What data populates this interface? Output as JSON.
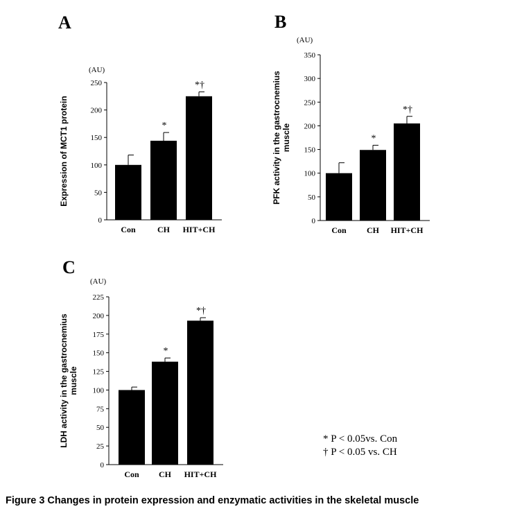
{
  "caption": "Figure 3 Changes in protein expression and enzymatic activities in the skeletal muscle",
  "legend": {
    "line1": "* P < 0.05vs. Con",
    "line2": "† P < 0.05 vs. CH"
  },
  "chart_data": [
    {
      "type": "bar",
      "panel": "A",
      "unit": "(AU)",
      "ylabel": "Expression of MCT1 protein",
      "categories": [
        "Con",
        "CH",
        "HIT+CH"
      ],
      "values": [
        100,
        144,
        225
      ],
      "errors": [
        18,
        15,
        8
      ],
      "markers": [
        "",
        "*",
        "*†"
      ],
      "ylim": [
        0,
        250
      ],
      "yticks": [
        "0",
        "50",
        "100",
        "150",
        "200",
        "250"
      ],
      "grid": false
    },
    {
      "type": "bar",
      "panel": "B",
      "unit": "(AU)",
      "ylabel": "PFK activity in the gastrocnemius muscle",
      "categories": [
        "Con",
        "CH",
        "HIT+CH"
      ],
      "values": [
        100,
        149,
        205
      ],
      "errors": [
        22,
        10,
        15
      ],
      "markers": [
        "",
        "*",
        "*†"
      ],
      "ylim": [
        0,
        350
      ],
      "yticks": [
        "0",
        "50",
        "100",
        "150",
        "200",
        "250",
        "300",
        "350"
      ],
      "grid": false
    },
    {
      "type": "bar",
      "panel": "C",
      "unit": "(AU)",
      "ylabel": "LDH activity in the gastrocnemius muscle",
      "categories": [
        "Con",
        "CH",
        "HIT+CH"
      ],
      "values": [
        100,
        138,
        193
      ],
      "errors": [
        4,
        5,
        4
      ],
      "markers": [
        "",
        "*",
        "*†"
      ],
      "ylim": [
        0,
        225
      ],
      "yticks": [
        "0",
        "25",
        "50",
        "75",
        "100",
        "125",
        "150",
        "175",
        "200",
        "225"
      ],
      "grid": false
    }
  ]
}
